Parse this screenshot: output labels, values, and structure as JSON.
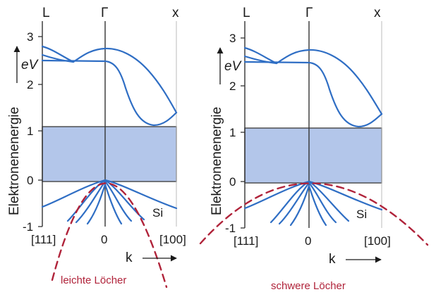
{
  "left_panel": {
    "top_labels": [
      "L",
      "Γ",
      "x"
    ],
    "y_ticks": [
      "3",
      "2",
      "1",
      "0",
      "-1"
    ],
    "y_unit": "eV",
    "y_axis_title": "Elektronenenergie",
    "x_ticks": [
      "[111]",
      "0",
      "[100]"
    ],
    "x_axis_title": "k",
    "material": "Si",
    "annotation": "leichte Löcher"
  },
  "right_panel": {
    "top_labels": [
      "L",
      "Γ",
      "x"
    ],
    "y_ticks": [
      "3",
      "2",
      "1",
      "0",
      "-1"
    ],
    "y_unit": "eV",
    "y_axis_title": "Elektronenenergie",
    "x_ticks": [
      "[111]",
      "0",
      "[100]"
    ],
    "x_axis_title": "k",
    "material": "Si",
    "annotation": "schwere Löcher"
  },
  "colors": {
    "band_lines": "#2f6ec4",
    "band_gap_fill": "#b3c6ea",
    "hole_parabola": "#b0233a"
  }
}
